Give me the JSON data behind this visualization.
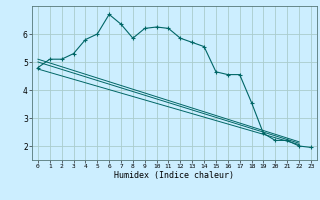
{
  "xlabel": "Humidex (Indice chaleur)",
  "bg_color": "#cceeff",
  "grid_color": "#aacccc",
  "line_color": "#006666",
  "xlim": [
    -0.5,
    23.5
  ],
  "ylim": [
    1.5,
    7.0
  ],
  "yticks": [
    2,
    3,
    4,
    5,
    6
  ],
  "xticks": [
    0,
    1,
    2,
    3,
    4,
    5,
    6,
    7,
    8,
    9,
    10,
    11,
    12,
    13,
    14,
    15,
    16,
    17,
    18,
    19,
    20,
    21,
    22,
    23
  ],
  "curve_x": [
    0,
    1,
    2,
    3,
    4,
    5,
    6,
    7,
    8,
    9,
    10,
    11,
    12,
    13,
    14,
    15,
    16,
    17,
    18,
    19,
    20,
    21,
    22,
    23
  ],
  "curve_y": [
    4.8,
    5.1,
    5.1,
    5.3,
    5.8,
    6.0,
    6.7,
    6.35,
    5.85,
    6.2,
    6.25,
    6.2,
    5.85,
    5.7,
    5.55,
    4.65,
    4.55,
    4.55,
    3.55,
    2.45,
    2.2,
    2.2,
    2.0,
    1.95
  ],
  "line1_x": [
    0,
    22
  ],
  "line1_y": [
    4.75,
    2.05
  ],
  "line2_x": [
    0,
    22
  ],
  "line2_y": [
    5.0,
    2.1
  ],
  "line3_x": [
    0,
    22
  ],
  "line3_y": [
    5.1,
    2.15
  ]
}
